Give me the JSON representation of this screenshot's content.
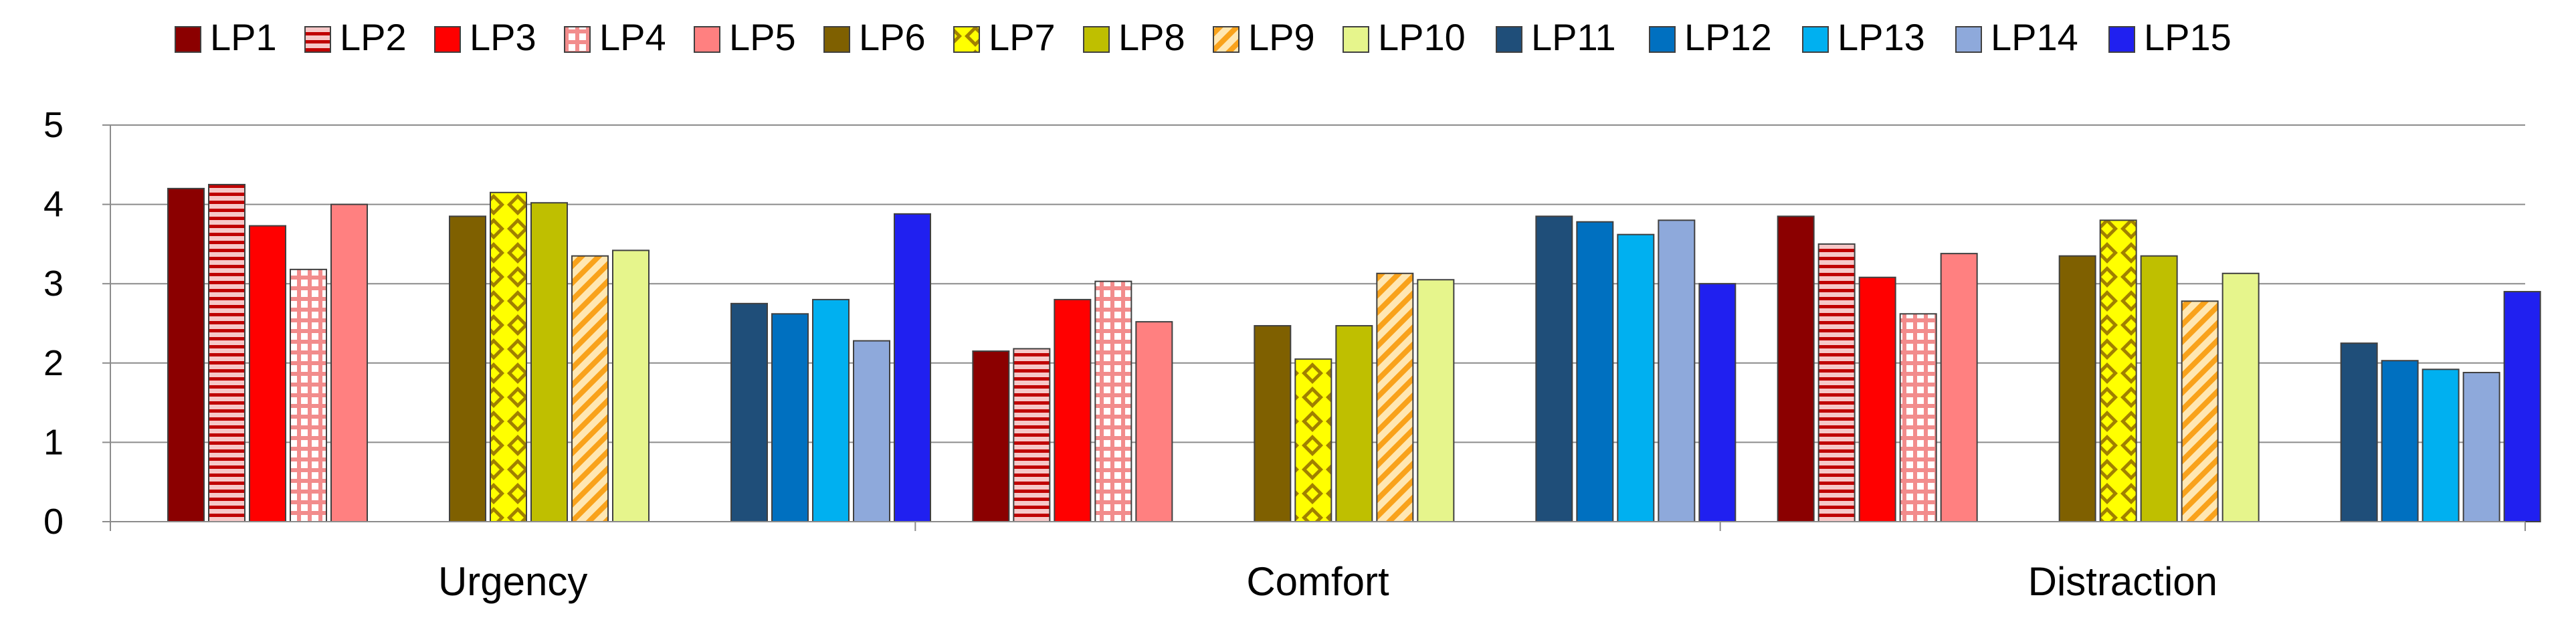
{
  "chart_data": {
    "type": "bar",
    "title": "",
    "xlabel": "",
    "ylabel": "",
    "ylim": [
      0,
      5
    ],
    "yticks": [
      "0",
      "1",
      "2",
      "3",
      "4",
      "5"
    ],
    "grid": true,
    "legend_position": "top",
    "categories": [
      "Urgency",
      "Comfort",
      "Distraction"
    ],
    "series": [
      {
        "name": "LP1",
        "values": [
          4.2,
          2.15,
          3.85
        ],
        "color": "#8B0000",
        "pattern": "solid"
      },
      {
        "name": "LP2",
        "values": [
          4.25,
          2.18,
          3.5
        ],
        "color": "#E8A0A0",
        "pattern": "horizontal-stripes"
      },
      {
        "name": "LP3",
        "values": [
          3.73,
          2.8,
          3.08
        ],
        "color": "#FF0000",
        "pattern": "solid"
      },
      {
        "name": "LP4",
        "values": [
          3.18,
          3.03,
          2.62
        ],
        "color": "#F4A0A0",
        "pattern": "grid"
      },
      {
        "name": "LP5",
        "values": [
          4.0,
          2.52,
          3.38
        ],
        "color": "#FF8080",
        "pattern": "solid"
      },
      {
        "name": "LP6",
        "values": [
          3.85,
          2.47,
          3.35
        ],
        "color": "#7F6000",
        "pattern": "solid"
      },
      {
        "name": "LP7",
        "values": [
          4.15,
          2.05,
          3.8
        ],
        "color": "#FFFF00",
        "pattern": "diamonds"
      },
      {
        "name": "LP8",
        "values": [
          4.02,
          2.47,
          3.35
        ],
        "color": "#BFBF00",
        "pattern": "solid"
      },
      {
        "name": "LP9",
        "values": [
          3.35,
          3.13,
          2.78
        ],
        "color": "#FFD280",
        "pattern": "diagonal-stripes"
      },
      {
        "name": "LP10",
        "values": [
          3.42,
          3.05,
          3.13
        ],
        "color": "#E6F58C",
        "pattern": "solid"
      },
      {
        "name": "LP11",
        "values": [
          2.75,
          3.85,
          2.25
        ],
        "color": "#1F4E79",
        "pattern": "solid"
      },
      {
        "name": "LP12",
        "values": [
          2.62,
          3.78,
          2.03
        ],
        "color": "#0070C0",
        "pattern": "solid"
      },
      {
        "name": "LP13",
        "values": [
          2.8,
          3.62,
          1.92
        ],
        "color": "#00B0F0",
        "pattern": "solid"
      },
      {
        "name": "LP14",
        "values": [
          2.28,
          3.8,
          1.88
        ],
        "color": "#8EA9DB",
        "pattern": "solid"
      },
      {
        "name": "LP15",
        "values": [
          3.88,
          3.0,
          2.9
        ],
        "color": "#2020F0",
        "pattern": "solid"
      }
    ]
  }
}
